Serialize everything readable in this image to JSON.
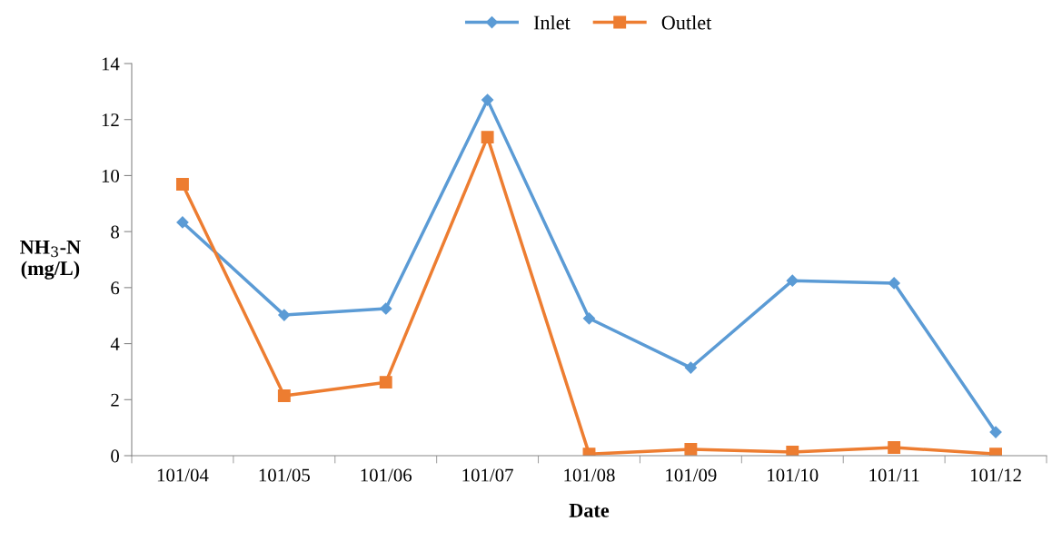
{
  "chart_data": {
    "type": "line",
    "xlabel": "Date",
    "ylabel": "NH$_{3}$-N\n(mg/L)",
    "categories": [
      "101/04",
      "101/05",
      "101/06",
      "101/07",
      "101/08",
      "101/09",
      "101/10",
      "101/11",
      "101/12"
    ],
    "series": [
      {
        "name": "Inlet",
        "color": "#5b9bd5",
        "marker": "diamond",
        "values": [
          8.33,
          5.02,
          5.25,
          12.7,
          4.9,
          3.14,
          6.25,
          6.16,
          0.84
        ]
      },
      {
        "name": "Outlet",
        "color": "#ed7d31",
        "marker": "square",
        "values": [
          9.69,
          2.14,
          2.62,
          11.37,
          0.06,
          0.23,
          0.13,
          0.29,
          0.06
        ]
      }
    ],
    "ylim": [
      0,
      14
    ],
    "yticks": [
      0,
      2,
      4,
      6,
      8,
      10,
      12,
      14
    ],
    "grid": false,
    "legend": "top",
    "line_style": "solid"
  }
}
